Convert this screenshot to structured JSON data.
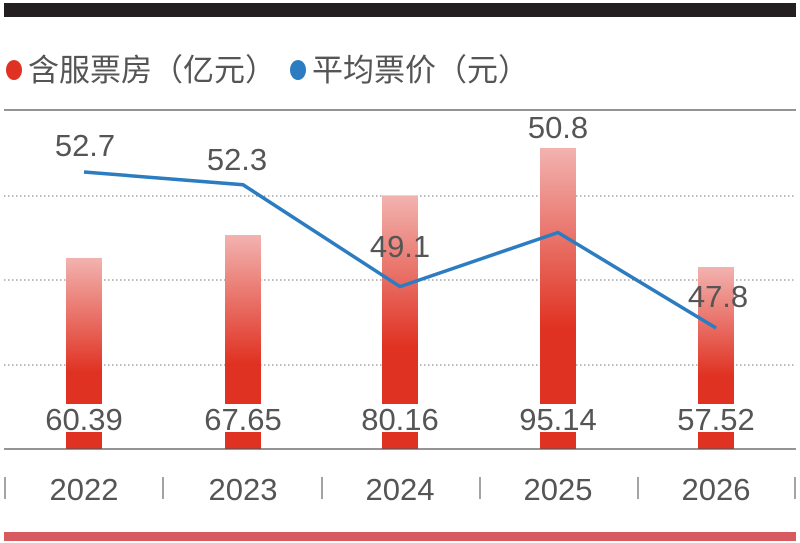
{
  "chart_data": {
    "type": "bar+line",
    "categories": [
      "2022",
      "2023",
      "2024",
      "2025",
      "2026"
    ],
    "series": [
      {
        "name": "含服票房（亿元）",
        "type": "bar",
        "color": "#e03222",
        "values": [
          60.39,
          67.65,
          80.16,
          95.14,
          57.52
        ],
        "labels": [
          "60.39",
          "67.65",
          "80.16",
          "95.14",
          "57.52"
        ]
      },
      {
        "name": "平均票价（元）",
        "type": "line",
        "color": "#2b7cc0",
        "values": [
          52.7,
          52.3,
          49.1,
          50.8,
          47.8
        ],
        "labels": [
          "52.7",
          "52.3",
          "49.1",
          "50.8",
          "47.8"
        ]
      }
    ],
    "legend": {
      "position": "top-left",
      "items": [
        "含服票房（亿元）",
        "平均票价（元）"
      ]
    },
    "grid": "dotted horizontal"
  },
  "colors": {
    "top_bar": "#231f20",
    "bottom_bar": "#d65a5f",
    "text": "#555555"
  }
}
